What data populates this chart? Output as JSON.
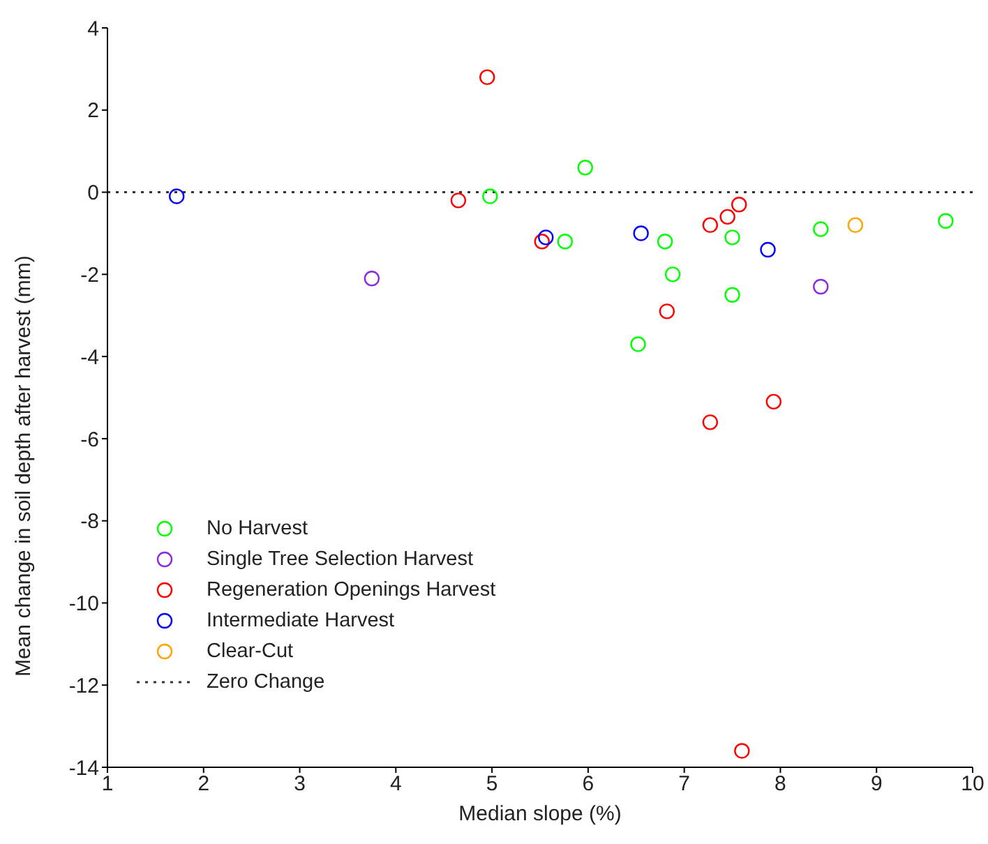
{
  "chart_data": {
    "type": "scatter",
    "xlabel": "Median slope (%)",
    "ylabel": "Mean change in soil depth after harvest (mm)",
    "xlim": [
      1,
      10
    ],
    "xticks": [
      1,
      2,
      3,
      4,
      5,
      6,
      7,
      8,
      9,
      10
    ],
    "ylim": [
      -14,
      4
    ],
    "yticks": [
      -14,
      -12,
      -10,
      -8,
      -6,
      -4,
      -2,
      0,
      2,
      4
    ],
    "marker": "circle",
    "grid": false,
    "legend": "bottom left",
    "series": [
      {
        "name": "No Harvest",
        "color": "#00ff00",
        "x": [
          4.98,
          5.97,
          5.76,
          6.8,
          6.88,
          6.52,
          7.5,
          7.5,
          8.42,
          9.72
        ],
        "values": [
          -0.1,
          0.6,
          -1.2,
          -1.2,
          -2.0,
          -3.7,
          -1.1,
          -2.5,
          -0.9,
          -0.7
        ]
      },
      {
        "name": "Single Tree Selection Harvest",
        "color": "#8a2be2",
        "x": [
          3.75,
          8.42
        ],
        "values": [
          -2.1,
          -2.3
        ]
      },
      {
        "name": "Regeneration Openings Harvest",
        "color": "#ff0000",
        "x": [
          4.95,
          4.65,
          5.52,
          7.57,
          7.45,
          7.27,
          6.82,
          7.27,
          7.93,
          7.6
        ],
        "values": [
          2.8,
          -0.2,
          -1.2,
          -0.3,
          -0.6,
          -0.8,
          -2.9,
          -5.6,
          -5.1,
          -13.6
        ]
      },
      {
        "name": "Intermediate Harvest",
        "color": "#0000ff",
        "x": [
          1.72,
          5.56,
          6.55,
          7.87
        ],
        "values": [
          -0.1,
          -1.1,
          -1.0,
          -1.4
        ]
      },
      {
        "name": "Clear-Cut",
        "color": "#ffa500",
        "x": [
          8.78
        ],
        "values": [
          -0.8
        ]
      }
    ],
    "ref_lines": [
      {
        "axis": "y",
        "value": 0,
        "label": "Zero Change",
        "color": "#333333",
        "line_style": "dotted"
      }
    ]
  }
}
